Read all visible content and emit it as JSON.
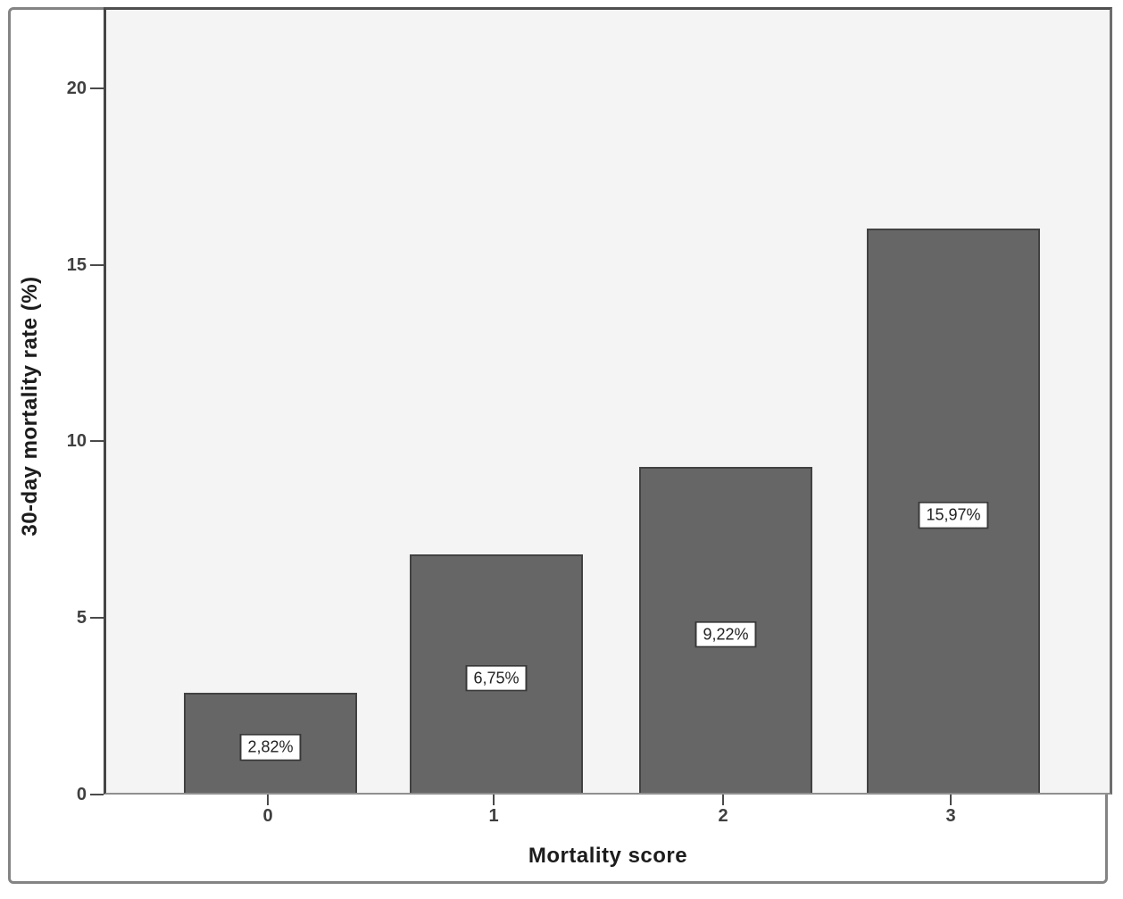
{
  "chart_data": {
    "type": "bar",
    "title": "",
    "xlabel": "Mortality score",
    "ylabel": "30-day mortality rate (%)",
    "categories": [
      "0",
      "1",
      "2",
      "3"
    ],
    "values": [
      2.82,
      6.75,
      9.22,
      15.97
    ],
    "bar_value_labels": [
      "2,82%",
      "6,75%",
      "9,22%",
      "15,97%"
    ],
    "y_ticks": [
      0,
      5,
      10,
      15,
      20
    ],
    "ylim": [
      0,
      22.3
    ],
    "grid": false,
    "legend": "none",
    "colors": {
      "bar_fill": "#666666",
      "bar_border": "#424242",
      "plot_background": "#f4f4f4",
      "frame_border": "#848484",
      "label_box_background": "#ffffff",
      "label_box_border": "#383838",
      "tick_text": "#3f3f3f",
      "axis_title_text": "#1c1c1c"
    }
  }
}
